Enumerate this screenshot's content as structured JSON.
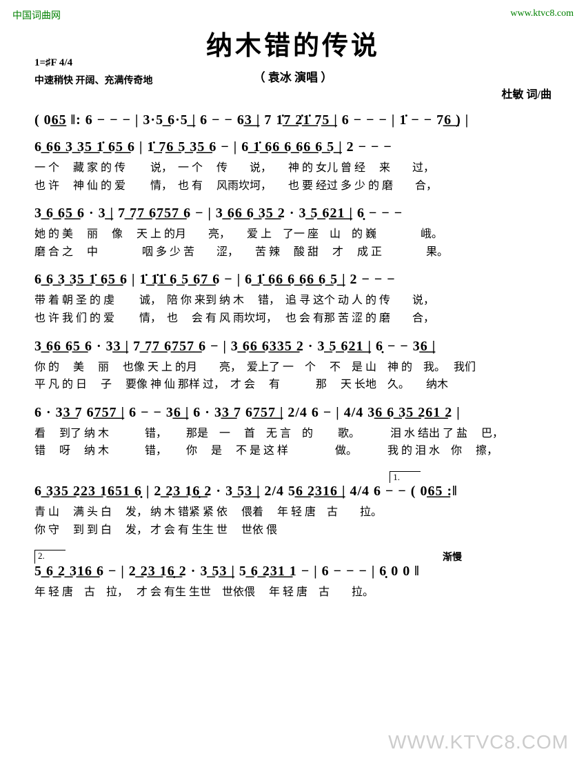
{
  "watermarks": {
    "top_left": "中国词曲网",
    "top_right": "www.ktvc8.com",
    "bottom_right": "WWW.KTVC8.COM"
  },
  "header": {
    "title": "纳木错的传说",
    "subtitle": "（ 袁冰  演唱 ）",
    "key_time": "1=♯F 4/4",
    "tempo": "中速稍快  开阔、充满传奇地",
    "composer": "杜敏  词/曲"
  },
  "notation": {
    "line1": "( 0͟6͟5 ‖: 6 − − − | 3·5͟ 6·5͟ | 6 − − 6͟3͟ | 7 1̇͟7͟ 2̇͟1̇͟ 7͟5͟ | 6 − − − | 1̇ − − 7͟6͟ ) |",
    "line2": "6͟ 6͟6͟ 3͟ 3͟5͟ 1̇͟ 6͟5͟ 6  |  1̇͟ 7͟6͟ 5͟ 3͟5͟ 6 −  |  6͟ 1̇͟ 6͟6͟ 6͟ 6͟6͟ 6͟ 5͟  |  2  −  −  −",
    "line3": "3͟ 6͟ 6͟5͟ 6 · 3͟  |  7͟ 7͟7͟ 6͟7͟5͟7͟ 6 −  |  3͟ 6͟6͟ 6͟ 3͟5͟ 2 · 3͟ 5͟ 6͟2͟1͟  |  6̣ − − −",
    "line4": "6͟ 6͟ 3͟ 3͟5͟ 1̇͟ 6͟5͟ 6  |  1̇͟ 1̇͟1̇͟ 6͟ 5͟ 6͟7͟ 6 −  |  6͟ 1̇͟ 6͟6͟ 6͟ 6͟6͟ 6͟ 5͟  |  2  −  −  −",
    "line5": "3͟ 6͟6͟ 6͟5͟ 6 · 3͟3͟ | 7͟ 7͟7͟ 6͟7͟5͟7͟ 6 − | 3͟ 6͟6͟ 6͟3͟3͟5͟ 2 · 3͟ 5͟ 6͟2͟1͟ | 6̣ − − 3͟6͟ |",
    "line6": "6 · 3͟3͟ 7 6͟7͟5͟7͟ | 6 − − 3͟6͟ | 6 · 3͟3͟ 7 6͟7͟5͟7͟ | 2/4 6 − | 4/4 3͟6͟ 6͟ 3͟5͟ 2͟6͟1͟ 2 |",
    "line7": "6͟ 3͟3͟5͟ 2͟2͟3͟ 1͟6͟5͟1͟ 6̣ | 2͟ 2͟3͟ 1͟6̣͟ 2 · 3͟ 5͟3͟ | 2/4 5͟6͟ 2͟3͟1͟6͟ | 4/4 6 − − ( 0͟6͟5͟ :‖",
    "line8": "5͟ 6͟ 2͟ 3͟1͟6͟ 6 − | 2͟ 2͟3͟ 1͟6̣͟ 2 · 3͟ 5͟3͟ | 5͟ 6͟ 2͟3͟1͟ 1 − | 6 − − − | 6̣ 0 0 ‖",
    "volta1": "1.",
    "volta2": "2.",
    "ritard": "渐慢"
  },
  "lyrics": {
    "l2a": "一 个　 藏 家 的 传　　 说，　一 个　  传　　说，　　神 的   女儿  曾 经　  来　　过，",
    "l2b": "也 许　 神 仙 的 爱　　 情，　也 有　  风雨坎坷，　　也 要   经过  多 少 的 磨　　合，",
    "l3a": "她 的 美　 丽　 像　 天 上 的月　　亮，　　爱 上　了一 座　山　的 巍　　　　峨。",
    "l3b": "磨 合 之　 中　　　　咽 多 少 苦　　涩，　　苦 辣　 酸 甜　 才　 成 正　　　　果。",
    "l4a": "带 着 朝 圣 的 虔　　 诚，　陪 你 来到  纳 木　 错，　追 寻  这个  动 人 的 传　　说，",
    "l4b": "也 许 我 们 的 爱　　 情，　也　 会 有  风 雨坎坷，　 也 会  有那  苦 涩 的 磨　　合，",
    "l5a": "你 的　 美　 丽　 也像  天 上 的月　　亮，　爱上了 一　个　 不　是 山　神  的　我。　 我们",
    "l5b": "平 凡 的 日　 子　 要像  神 仙  那样  过，　才 会　 有　　　 那　 天 长地　久。　　纳木",
    "l6a": "看　 到了 纳 木　　　 错，　　   那是　一　 首　无 言　的　　 歌。　　　 泪 水   结出 了 盐　 巴，",
    "l6b": "错　 呀　 纳 木　　　 错，　　   你　  是　 不 是 这 样　　　　 做。　　　 我 的   泪 水　你　 擦，",
    "l7a": "青 山　 满 头  白　 发，  纳 木 错紧 紧 依　 偎着　  年 轻 唐　古　　拉。",
    "l7b": "你 守　 到 到  白　 发，  才 会 有 生生 世　 世依 偎",
    "l8a": "年 轻 唐　古　拉，　 才 会 有生 生世　世依偎　  年 轻 唐　古　　拉。"
  },
  "colors": {
    "text": "#000000",
    "watermark_green": "#008000",
    "watermark_gray": "#cccccc",
    "background": "#ffffff"
  }
}
